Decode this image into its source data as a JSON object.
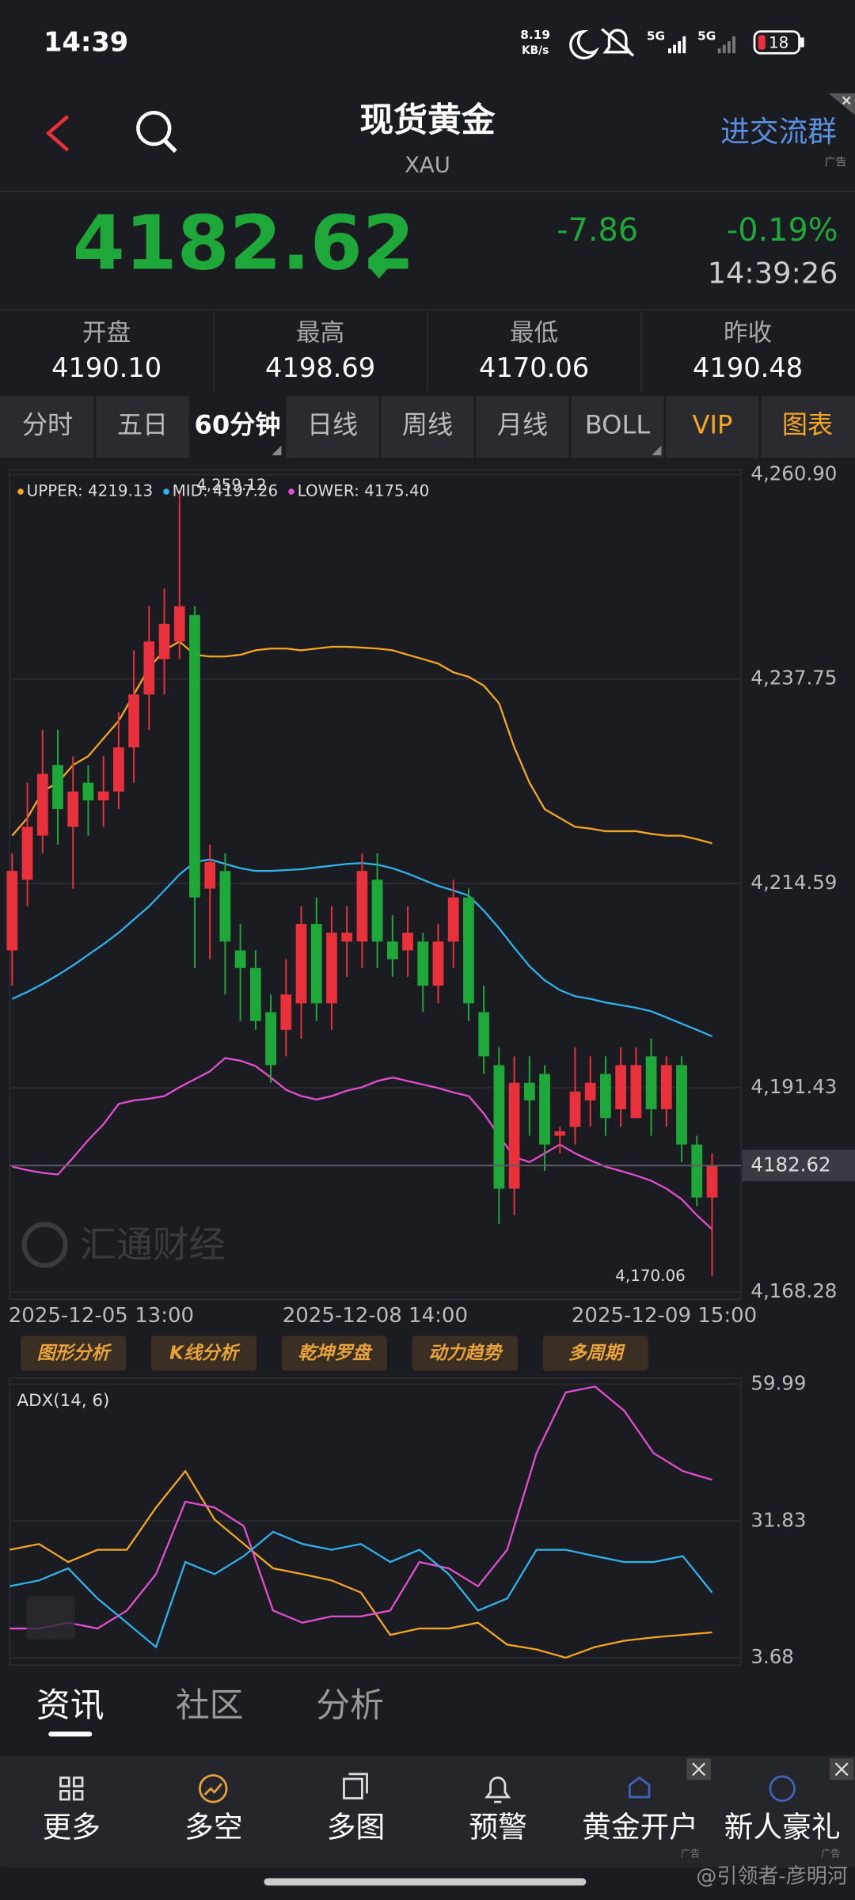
{
  "status_bar": {
    "time": "14:39",
    "net_speed": "8.19",
    "net_unit": "KB/s",
    "signal_1": "5G",
    "signal_2": "5G",
    "battery": "18"
  },
  "header": {
    "title": "现货黄金",
    "subtitle": "XAU",
    "ad_button": "进交流群",
    "ad_tag": "广告"
  },
  "quote": {
    "price": "4182.62",
    "change": "-7.86",
    "change_pct": "-0.19%",
    "time": "14:39:26"
  },
  "stats": [
    {
      "label": "开盘",
      "value": "4190.10"
    },
    {
      "label": "最高",
      "value": "4198.69"
    },
    {
      "label": "最低",
      "value": "4170.06"
    },
    {
      "label": "昨收",
      "value": "4190.48"
    }
  ],
  "tabs": [
    "分时",
    "五日",
    "60分钟",
    "日线",
    "周线",
    "月线",
    "BOLL",
    "VIP",
    "图表"
  ],
  "price_chart": {
    "type": "candlestick",
    "watermark": "汇通财经",
    "ylim": [
      4168.28,
      4260.9
    ],
    "yticks": [
      {
        "value": 4260.9,
        "label": "4,260.90"
      },
      {
        "value": 4237.75,
        "label": "4,237.75"
      },
      {
        "value": 4214.59,
        "label": "4,214.59"
      },
      {
        "value": 4191.43,
        "label": "4,191.43"
      },
      {
        "value": 4168.28,
        "label": "4,168.28"
      }
    ],
    "up_color": "#e8313b",
    "down_color": "#1fa83a",
    "categories": [
      "2025-12-05 13:00",
      null,
      null,
      null,
      null,
      null,
      null,
      null,
      null,
      null,
      null,
      null,
      null,
      null,
      null,
      null,
      null,
      null,
      "2025-12-08 14:00",
      null,
      null,
      null,
      null,
      null,
      null,
      null,
      null,
      null,
      null,
      null,
      null,
      null,
      null,
      null,
      null,
      null,
      null,
      "2025-12-09 15:00",
      null,
      null,
      null,
      null,
      null,
      null,
      null,
      null,
      null
    ],
    "open": [
      4207,
      4215,
      4220,
      4228,
      4221,
      4226,
      4224,
      4225,
      4230,
      4236,
      4240,
      4242,
      4245,
      4214,
      4216,
      4207,
      4205,
      4200,
      4198,
      4201,
      4210,
      4201,
      4208,
      4208,
      4215,
      4208,
      4207,
      4208,
      4203,
      4208,
      4213,
      4200,
      4194,
      4180,
      4192,
      4193,
      4186,
      4187,
      4190,
      4193,
      4189,
      4188,
      4195,
      4189,
      4194,
      4185,
      4179
    ],
    "high": [
      4218,
      4226,
      4232,
      4232,
      4229,
      4228,
      4229,
      4234,
      4241,
      4246,
      4248,
      4259.12,
      4246,
      4219,
      4218,
      4210,
      4207,
      4202,
      4206,
      4212,
      4213,
      4212,
      4212,
      4218,
      4218,
      4211,
      4212,
      4209,
      4210,
      4215,
      4214,
      4203,
      4196,
      4195,
      4195,
      4194,
      4187,
      4196,
      4195,
      4195,
      4196,
      4196,
      4197,
      4195,
      4195,
      4186,
      4184
    ],
    "low": [
      4203,
      4212,
      4218,
      4219,
      4214,
      4220,
      4221,
      4223,
      4226,
      4232,
      4236,
      4240,
      4205,
      4206,
      4202,
      4199,
      4198,
      4192,
      4195,
      4197,
      4199,
      4198,
      4204,
      4205,
      4205,
      4204,
      4204,
      4200,
      4201,
      4205,
      4199,
      4193,
      4176,
      4177,
      4186,
      4182,
      4184,
      4185,
      4187,
      4186,
      4187,
      4188,
      4186,
      4187,
      4183,
      4178,
      4170.06
    ],
    "close": [
      4216,
      4221,
      4227,
      4223,
      4225,
      4224,
      4225,
      4230,
      4236,
      4242,
      4244,
      4246,
      4213,
      4217,
      4208,
      4205,
      4199,
      4194,
      4202,
      4210,
      4201,
      4209,
      4209,
      4216,
      4208,
      4206,
      4209,
      4203,
      4208,
      4213,
      4201,
      4195,
      4180,
      4192,
      4190,
      4185,
      4186.5,
      4191,
      4192,
      4188,
      4194,
      4194,
      4189,
      4194,
      4185,
      4179,
      4182.62
    ],
    "extremes": {
      "high": {
        "value": 4259.12,
        "label": "4,259.12"
      },
      "low": {
        "value": 4170.06,
        "label": "4,170.06"
      }
    },
    "last": {
      "value": 4182.62,
      "label": "4182.62"
    },
    "bands": [
      {
        "legend": "UPPER: 4219.13",
        "color": "#f5a623",
        "values": [
          4220,
          4222,
          4225,
          4226,
          4228,
          4229,
          4231,
          4233,
          4236,
          4239,
          4241,
          4242,
          4240.5,
          4240.3,
          4240.3,
          4240.5,
          4241,
          4241.2,
          4241.2,
          4241,
          4241.2,
          4241.4,
          4241.4,
          4241.3,
          4241.2,
          4241,
          4240.5,
          4240,
          4239.5,
          4238.5,
          4238,
          4237,
          4235,
          4230,
          4226,
          4223,
          4222,
          4221,
          4220.8,
          4220.5,
          4220.5,
          4220.5,
          4220.2,
          4220,
          4220,
          4219.6,
          4219.13
        ]
      },
      {
        "legend": "MID: 4197.26",
        "color": "#2fb3ea",
        "values": [
          4201.5,
          4202.3,
          4203.2,
          4204.2,
          4205.3,
          4206.5,
          4207.7,
          4209,
          4210.5,
          4212,
          4213.8,
          4215.6,
          4217,
          4217.3,
          4216.8,
          4216.3,
          4216,
          4216,
          4216.1,
          4216.2,
          4216.4,
          4216.6,
          4216.8,
          4216.9,
          4216.7,
          4216.3,
          4215.7,
          4215,
          4214.3,
          4213.8,
          4213.2,
          4211.5,
          4209.5,
          4207.3,
          4205.2,
          4203.6,
          4202.5,
          4201.8,
          4201.5,
          4201.1,
          4200.8,
          4200.5,
          4200.1,
          4199.4,
          4198.7,
          4198,
          4197.26
        ]
      },
      {
        "legend": "LOWER: 4175.40",
        "color": "#e44fcf",
        "values": [
          4182.5,
          4182.1,
          4181.8,
          4181.6,
          4183.5,
          4185.5,
          4187.3,
          4189.6,
          4190,
          4190.2,
          4190.5,
          4191.5,
          4192.4,
          4193.3,
          4194.8,
          4194.5,
          4193.9,
          4192.6,
          4191.2,
          4190.5,
          4190.1,
          4190.5,
          4191.1,
          4191.5,
          4192.2,
          4192.6,
          4192.2,
          4191.8,
          4191.4,
          4190.9,
          4190.5,
          4188.5,
          4186,
          4183.6,
          4183,
          4184,
          4185,
          4184,
          4183.2,
          4182.5,
          4182,
          4181.5,
          4180.9,
          4180,
          4178.8,
          4177,
          4175.4
        ]
      }
    ]
  },
  "tools": [
    "图形分析",
    "K线分析",
    "乾坤罗盘",
    "动力趋势",
    "多周期"
  ],
  "adx_chart": {
    "type": "line",
    "title": "ADX(14, 6)",
    "ylim": [
      3.68,
      59.99
    ],
    "yticks": [
      59.99,
      31.83,
      3.68
    ],
    "series": [
      {
        "color": "#f5a623",
        "values": [
          25.9,
          27.1,
          23.4,
          25.9,
          25.9,
          34.6,
          42.1,
          32.1,
          27.1,
          22.1,
          20.9,
          19.6,
          17.1,
          8.4,
          9.7,
          9.7,
          10.9,
          6.4,
          5.4,
          3.7,
          5.9,
          7.2,
          7.9,
          8.4,
          8.9
        ]
      },
      {
        "color": "#e44fcf",
        "values": [
          9.7,
          9.7,
          10.9,
          9.7,
          13.4,
          20.9,
          35.8,
          34.6,
          30.8,
          13.4,
          10.9,
          12.2,
          12.2,
          13.4,
          23.4,
          22.1,
          18.4,
          25.9,
          45.8,
          58.3,
          59.5,
          54.5,
          45.8,
          42.1,
          40.3
        ]
      },
      {
        "color": "#2fb3ea",
        "values": [
          18.4,
          19.6,
          22.1,
          15.9,
          10.9,
          5.9,
          23.4,
          20.9,
          24.6,
          29.6,
          27.1,
          25.9,
          27.1,
          23.4,
          25.9,
          20.9,
          13.4,
          15.9,
          25.9,
          25.9,
          24.6,
          23.4,
          23.4,
          24.6,
          17.1
        ]
      }
    ]
  },
  "news_tabs": [
    "资讯",
    "社区",
    "分析"
  ],
  "bottom_nav": [
    "更多",
    "多空",
    "多图",
    "预警",
    "黄金开户",
    "新人豪礼"
  ],
  "nav_ad_tags": [
    "广告",
    "广告"
  ],
  "watermark": "@引领者-彦明河"
}
